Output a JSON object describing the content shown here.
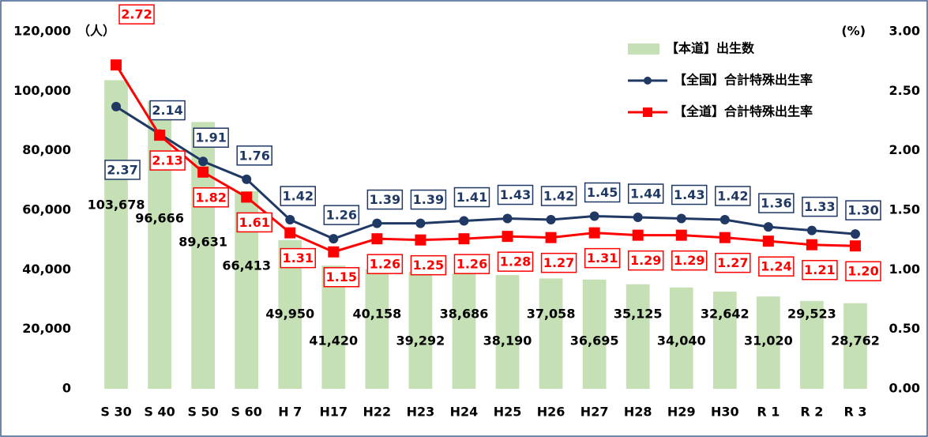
{
  "chart_data": {
    "type": "bar",
    "y_unit": "（人）",
    "y2_unit": "(%)",
    "categories": [
      "S 30",
      "S 40",
      "S 50",
      "S 60",
      "H 7",
      "H17",
      "H22",
      "H23",
      "H24",
      "H25",
      "H26",
      "H27",
      "H28",
      "H29",
      "H30",
      "R 1",
      "R 2",
      "R 3"
    ],
    "values": [
      103678,
      96666,
      89631,
      66413,
      49950,
      41420,
      40158,
      39292,
      38686,
      38190,
      37058,
      36695,
      35125,
      34040,
      32642,
      31020,
      29523,
      28762
    ],
    "value_labels": [
      "103,678",
      "96,666",
      "89,631",
      "66,413",
      "49,950",
      "41,420",
      "40,158",
      "39,292",
      "38,686",
      "38,190",
      "37,058",
      "36,695",
      "35,125",
      "34,040",
      "32,642",
      "31,020",
      "29,523",
      "28,762"
    ],
    "name": "【本道】出生数",
    "color": "#c5e0b4",
    "series": [
      {
        "name": "【全国】合計特殊出生率",
        "color": "#203864",
        "axis": "y2",
        "marker": "circle",
        "values": [
          2.37,
          2.14,
          1.91,
          1.76,
          1.42,
          1.26,
          1.39,
          1.39,
          1.41,
          1.43,
          1.42,
          1.45,
          1.44,
          1.43,
          1.42,
          1.36,
          1.33,
          1.3
        ],
        "value_labels": [
          "2.37",
          "2.14",
          "1.91",
          "1.76",
          "1.42",
          "1.26",
          "1.39",
          "1.39",
          "1.41",
          "1.43",
          "1.42",
          "1.45",
          "1.44",
          "1.43",
          "1.42",
          "1.36",
          "1.33",
          "1.30"
        ]
      },
      {
        "name": "【全道】合計特殊出生率",
        "color": "#ff0000",
        "axis": "y2",
        "marker": "square",
        "values": [
          2.72,
          2.13,
          1.82,
          1.61,
          1.31,
          1.15,
          1.26,
          1.25,
          1.26,
          1.28,
          1.27,
          1.31,
          1.29,
          1.29,
          1.27,
          1.24,
          1.21,
          1.2
        ],
        "value_labels": [
          "2.72",
          "2.13",
          "1.82",
          "1.61",
          "1.31",
          "1.15",
          "1.26",
          "1.25",
          "1.26",
          "1.28",
          "1.27",
          "1.31",
          "1.29",
          "1.29",
          "1.27",
          "1.24",
          "1.21",
          "1.20"
        ]
      }
    ],
    "ylim": [
      0,
      120000
    ],
    "yticks": [
      0,
      {
        "value": 20000,
        "label": "20,000"
      },
      {
        "value": 40000,
        "label": "40,000"
      },
      {
        "value": 60000,
        "label": "60,000"
      },
      {
        "value": 80000,
        "label": "80,000"
      },
      {
        "value": 100000,
        "label": "100,000"
      },
      {
        "value": 120000,
        "label": "120,000"
      }
    ],
    "y2lim": [
      0,
      3
    ],
    "y2ticks": [
      {
        "value": 0,
        "label": "0.00"
      },
      {
        "value": 0.5,
        "label": "0.50"
      },
      {
        "value": 1,
        "label": "1.00"
      },
      {
        "value": 1.5,
        "label": "1.50"
      },
      {
        "value": 2,
        "label": "2.00"
      },
      {
        "value": 2.5,
        "label": "2.50"
      },
      {
        "value": 3,
        "label": "3.00"
      }
    ],
    "legend": "top-right"
  }
}
